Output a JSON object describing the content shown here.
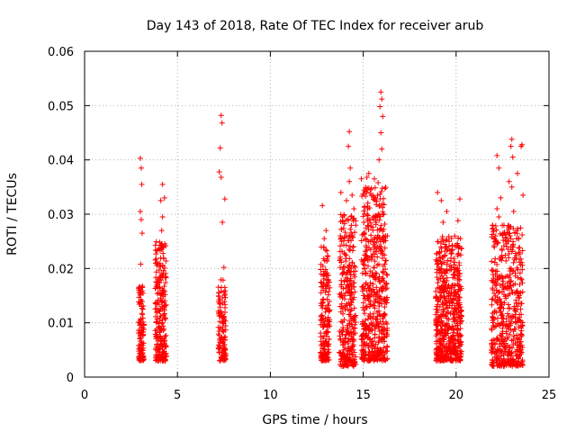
{
  "chart_data": {
    "type": "scatter",
    "title": "Day 143 of 2018, Rate Of TEC Index for receiver arub",
    "xlabel": "GPS time / hours",
    "ylabel": "ROTI / TECUs",
    "xlim": [
      0,
      25
    ],
    "ylim": [
      0,
      0.06
    ],
    "x_ticks": [
      "0",
      "5",
      "10",
      "15",
      "20",
      "25"
    ],
    "y_ticks": [
      "0",
      "0.01",
      "0.02",
      "0.03",
      "0.04",
      "0.05",
      "0.06"
    ],
    "grid": true,
    "legend": "none",
    "marker": "+",
    "color": "#ff0000",
    "clusters": [
      {
        "x_range": [
          2.9,
          3.2
        ],
        "y_range": [
          0.003,
          0.017
        ],
        "count": 110
      },
      {
        "x_range": [
          3.8,
          4.4
        ],
        "y_range": [
          0.003,
          0.025
        ],
        "count": 240
      },
      {
        "x_range": [
          7.2,
          7.6
        ],
        "y_range": [
          0.003,
          0.018
        ],
        "count": 120
      },
      {
        "x_range": [
          12.7,
          13.2
        ],
        "y_range": [
          0.003,
          0.024
        ],
        "count": 180
      },
      {
        "x_range": [
          13.7,
          14.6
        ],
        "y_range": [
          0.002,
          0.03
        ],
        "count": 320
      },
      {
        "x_range": [
          14.9,
          16.3
        ],
        "y_range": [
          0.003,
          0.035
        ],
        "count": 520
      },
      {
        "x_range": [
          18.9,
          20.3
        ],
        "y_range": [
          0.003,
          0.026
        ],
        "count": 560
      },
      {
        "x_range": [
          21.9,
          23.6
        ],
        "y_range": [
          0.002,
          0.028
        ],
        "count": 520
      }
    ],
    "points": [
      {
        "x": 3.0,
        "y": 0.0403
      },
      {
        "x": 3.05,
        "y": 0.0385
      },
      {
        "x": 3.08,
        "y": 0.0355
      },
      {
        "x": 3.0,
        "y": 0.0305
      },
      {
        "x": 3.05,
        "y": 0.029
      },
      {
        "x": 3.1,
        "y": 0.0265
      },
      {
        "x": 3.02,
        "y": 0.0208
      },
      {
        "x": 4.2,
        "y": 0.0355
      },
      {
        "x": 4.1,
        "y": 0.0325
      },
      {
        "x": 4.3,
        "y": 0.033
      },
      {
        "x": 4.2,
        "y": 0.0295
      },
      {
        "x": 4.15,
        "y": 0.027
      },
      {
        "x": 7.35,
        "y": 0.0482
      },
      {
        "x": 7.4,
        "y": 0.0468
      },
      {
        "x": 7.3,
        "y": 0.0422
      },
      {
        "x": 7.25,
        "y": 0.0378
      },
      {
        "x": 7.35,
        "y": 0.0368
      },
      {
        "x": 7.55,
        "y": 0.0328
      },
      {
        "x": 7.42,
        "y": 0.0285
      },
      {
        "x": 7.5,
        "y": 0.0202
      },
      {
        "x": 12.8,
        "y": 0.0316
      },
      {
        "x": 13.0,
        "y": 0.027
      },
      {
        "x": 12.9,
        "y": 0.0255
      },
      {
        "x": 14.25,
        "y": 0.0452
      },
      {
        "x": 14.2,
        "y": 0.0425
      },
      {
        "x": 14.3,
        "y": 0.0385
      },
      {
        "x": 14.25,
        "y": 0.036
      },
      {
        "x": 13.8,
        "y": 0.034
      },
      {
        "x": 14.4,
        "y": 0.0335
      },
      {
        "x": 14.1,
        "y": 0.0325
      },
      {
        "x": 14.5,
        "y": 0.031
      },
      {
        "x": 15.95,
        "y": 0.0525
      },
      {
        "x": 16.0,
        "y": 0.0512
      },
      {
        "x": 15.9,
        "y": 0.0498
      },
      {
        "x": 16.05,
        "y": 0.048
      },
      {
        "x": 15.95,
        "y": 0.045
      },
      {
        "x": 16.0,
        "y": 0.042
      },
      {
        "x": 15.85,
        "y": 0.04
      },
      {
        "x": 15.3,
        "y": 0.0375
      },
      {
        "x": 15.2,
        "y": 0.0368
      },
      {
        "x": 14.9,
        "y": 0.0365
      },
      {
        "x": 15.6,
        "y": 0.0365
      },
      {
        "x": 15.8,
        "y": 0.0358
      },
      {
        "x": 19.0,
        "y": 0.034
      },
      {
        "x": 19.2,
        "y": 0.0325
      },
      {
        "x": 19.5,
        "y": 0.0305
      },
      {
        "x": 19.3,
        "y": 0.0285
      },
      {
        "x": 20.2,
        "y": 0.0328
      },
      {
        "x": 20.1,
        "y": 0.0288
      },
      {
        "x": 23.0,
        "y": 0.0438
      },
      {
        "x": 22.95,
        "y": 0.0425
      },
      {
        "x": 22.2,
        "y": 0.0408
      },
      {
        "x": 23.55,
        "y": 0.0428
      },
      {
        "x": 23.5,
        "y": 0.0425
      },
      {
        "x": 23.05,
        "y": 0.0405
      },
      {
        "x": 22.3,
        "y": 0.0385
      },
      {
        "x": 23.3,
        "y": 0.0375
      },
      {
        "x": 22.85,
        "y": 0.036
      },
      {
        "x": 23.0,
        "y": 0.035
      },
      {
        "x": 22.4,
        "y": 0.033
      },
      {
        "x": 23.6,
        "y": 0.0335
      },
      {
        "x": 22.2,
        "y": 0.031
      },
      {
        "x": 23.1,
        "y": 0.0305
      },
      {
        "x": 22.3,
        "y": 0.0295
      }
    ]
  }
}
